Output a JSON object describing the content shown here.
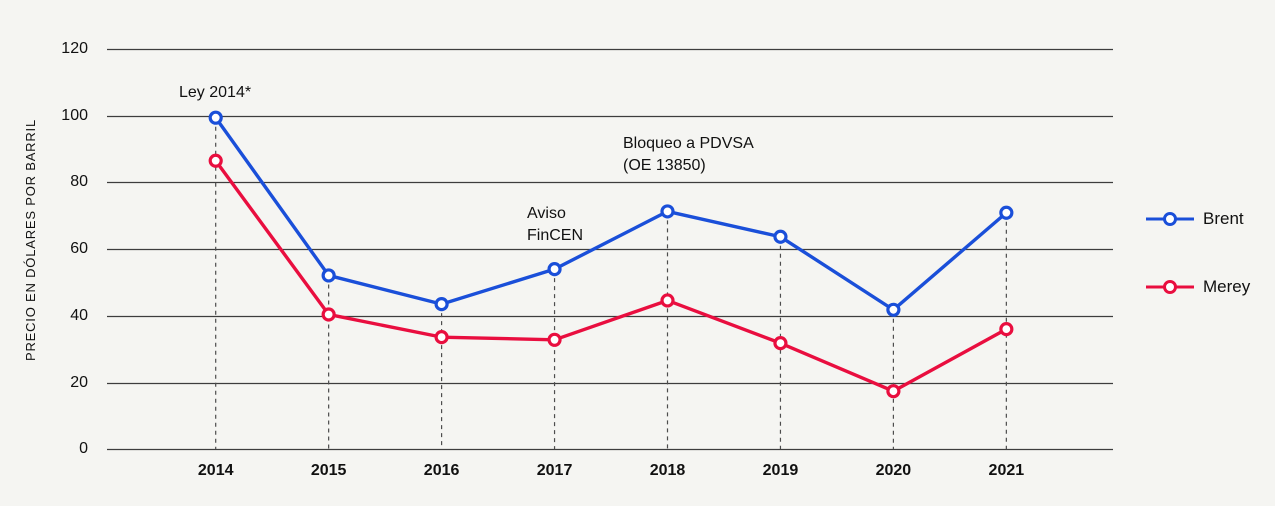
{
  "chart_data": {
    "type": "line",
    "title": "",
    "xlabel": "",
    "ylabel": "PRECIO EN DÓLARES POR BARRIL",
    "x": [
      "2014",
      "2015",
      "2016",
      "2017",
      "2018",
      "2019",
      "2020",
      "2021"
    ],
    "ylim": [
      0,
      120
    ],
    "yticks": [
      0,
      20,
      40,
      60,
      80,
      100,
      120
    ],
    "grid": "horizontal-only",
    "guide_lines": "dashed vertical line from top point of each year down to the x-axis",
    "marker_style": "open circle (white fill, colored ring)",
    "legend_position": "right",
    "series": [
      {
        "name": "Brent",
        "color": "#1a4fd9",
        "values": [
          99.4,
          52.1,
          43.5,
          54.0,
          71.3,
          63.7,
          41.8,
          70.9
        ]
      },
      {
        "name": "Merey",
        "color": "#e90e3f",
        "values": [
          86.5,
          40.4,
          33.6,
          32.8,
          44.6,
          31.8,
          17.4,
          36.0
        ]
      }
    ],
    "annotations": [
      {
        "id": "ley-2014",
        "text": "Ley 2014*",
        "anchor_year": "2014"
      },
      {
        "id": "aviso-fincen",
        "text": "Aviso\nFinCEN",
        "anchor_year": "2017"
      },
      {
        "id": "bloqueo-pdvsa",
        "text": "Bloqueo a PDVSA\n(OE 13850)",
        "anchor_year": "2018"
      }
    ]
  },
  "colors": {
    "background": "#f5f5f2",
    "gridline": "#3d3d3d",
    "dashed_guide": "#4d4d4d",
    "text": "#111111",
    "marker_fill": "#ffffff"
  }
}
